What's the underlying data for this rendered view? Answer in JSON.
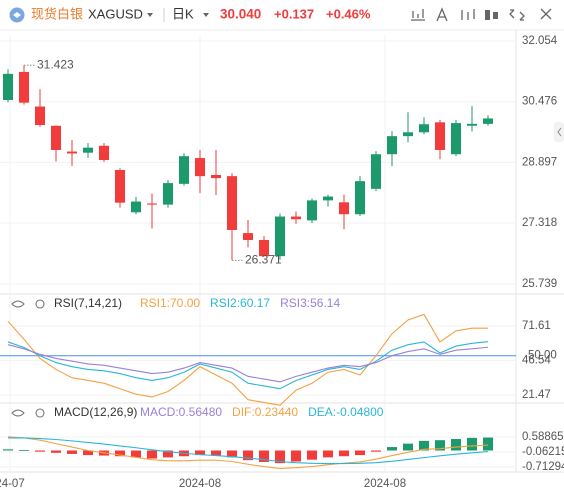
{
  "header": {
    "product": "现货白银",
    "symbol": "XAGUSD",
    "period": "日K",
    "price": "30.040",
    "change": "+0.137",
    "change_pct": "+0.46%"
  },
  "x_axis_labels": [
    "24-07",
    "2024-08",
    "2024-08"
  ],
  "chart_data": [
    {
      "type": "candlestick",
      "up_color": "#1c9a6c",
      "down_color": "#f23b3b",
      "open": [
        30.52,
        31.25,
        30.35,
        29.85,
        29.18,
        29.15,
        29.33,
        28.7,
        27.6,
        27.83,
        27.8,
        28.34,
        29.01,
        28.57,
        28.54,
        27.06,
        26.88,
        26.46,
        27.49,
        27.39,
        27.91,
        27.86,
        27.55,
        28.21,
        29.11,
        29.58,
        29.68,
        29.94,
        29.11,
        29.85,
        29.9
      ],
      "high": [
        31.32,
        31.423,
        30.8,
        29.85,
        29.48,
        29.4,
        29.4,
        28.75,
        28.0,
        28.09,
        28.44,
        29.14,
        29.22,
        29.22,
        28.62,
        27.4,
        26.98,
        27.57,
        27.62,
        27.96,
        28.06,
        28.06,
        28.54,
        29.19,
        29.71,
        30.2,
        30.07,
        30.0,
        30.0,
        30.36,
        30.12
      ],
      "low": [
        30.46,
        30.4,
        29.82,
        28.92,
        28.8,
        29.02,
        28.91,
        27.72,
        27.55,
        27.18,
        27.72,
        28.29,
        28.1,
        28.05,
        26.35,
        26.69,
        26.45,
        26.371,
        27.3,
        27.32,
        27.75,
        27.16,
        27.5,
        28.15,
        28.8,
        29.42,
        29.63,
        28.98,
        29.06,
        29.7,
        29.85
      ],
      "close": [
        31.2,
        30.45,
        29.87,
        29.22,
        29.13,
        29.28,
        28.96,
        27.85,
        27.88,
        27.8,
        28.36,
        29.06,
        28.54,
        28.49,
        27.14,
        26.88,
        26.46,
        27.49,
        27.42,
        27.91,
        28.01,
        27.55,
        28.41,
        29.11,
        29.58,
        29.68,
        29.89,
        29.22,
        29.92,
        29.9,
        30.04
      ],
      "high_label": "31.423",
      "low_label": "26.371",
      "ylim": [
        25.58,
        32.21
      ],
      "yticks": [
        32.054,
        30.476,
        28.897,
        27.318,
        25.739
      ]
    },
    {
      "type": "line",
      "title": "RSI(7,14,21)",
      "series": [
        {
          "name": "RSI1:70.00",
          "color": "#f4a142",
          "values": [
            75,
            62,
            48,
            40,
            34,
            32,
            30,
            26,
            22,
            20,
            24,
            32,
            42,
            36,
            30,
            18,
            16,
            14,
            25,
            30,
            38,
            40,
            36,
            50,
            66,
            76,
            80,
            60,
            68,
            70,
            70
          ]
        },
        {
          "name": "RSI2:60.17",
          "color": "#29b6d8",
          "values": [
            60,
            56,
            50,
            45,
            42,
            40,
            39,
            37,
            34,
            32,
            34,
            38,
            44,
            41,
            38,
            30,
            28,
            26,
            32,
            36,
            40,
            42,
            40,
            46,
            54,
            58,
            60,
            52,
            57,
            59,
            60.17
          ]
        },
        {
          "name": "RSI3:56.14",
          "color": "#9b80d6",
          "values": [
            58,
            55,
            51,
            48,
            46,
            44,
            43,
            41,
            39,
            37,
            38,
            41,
            45,
            43,
            41,
            35,
            33,
            31,
            35,
            38,
            41,
            43,
            42,
            45,
            50,
            53,
            55,
            51,
            54,
            55,
            56.14
          ]
        }
      ],
      "reference_line": {
        "value": 50,
        "label": "50.00",
        "color": "#4a8fe7"
      },
      "ylim": [
        17.8,
        90.5
      ],
      "yticks": [
        71.61,
        46.54,
        21.47
      ]
    },
    {
      "type": "macd",
      "title": "MACD(12,26,9)",
      "series": [
        {
          "name": "MACD:0.56480",
          "color": "#9b80d6",
          "up_color": "#1c9a6c",
          "down_color": "#f23b3b",
          "values": [
            0.05,
            0.02,
            -0.05,
            -0.1,
            -0.15,
            -0.2,
            -0.22,
            -0.25,
            -0.3,
            -0.35,
            -0.3,
            -0.25,
            -0.2,
            -0.22,
            -0.3,
            -0.42,
            -0.5,
            -0.55,
            -0.48,
            -0.4,
            -0.3,
            -0.25,
            -0.2,
            -0.05,
            0.15,
            0.3,
            0.42,
            0.45,
            0.5,
            0.55,
            0.5648
          ]
        },
        {
          "name": "DIF:0.23440",
          "color": "#f4a142",
          "values": [
            0.6,
            0.55,
            0.45,
            0.3,
            0.15,
            0.0,
            -0.1,
            -0.2,
            -0.3,
            -0.4,
            -0.45,
            -0.45,
            -0.42,
            -0.42,
            -0.48,
            -0.6,
            -0.7,
            -0.78,
            -0.75,
            -0.7,
            -0.62,
            -0.55,
            -0.5,
            -0.38,
            -0.22,
            -0.08,
            0.05,
            0.08,
            0.15,
            0.2,
            0.2344
          ]
        },
        {
          "name": "DEA:-0.04800",
          "color": "#29b6d8",
          "values": [
            0.55,
            0.55,
            0.52,
            0.48,
            0.42,
            0.35,
            0.28,
            0.2,
            0.12,
            0.03,
            -0.05,
            -0.12,
            -0.18,
            -0.22,
            -0.27,
            -0.33,
            -0.4,
            -0.48,
            -0.53,
            -0.56,
            -0.57,
            -0.57,
            -0.56,
            -0.53,
            -0.47,
            -0.39,
            -0.31,
            -0.23,
            -0.16,
            -0.1,
            -0.048
          ]
        }
      ],
      "ylim": [
        -0.85,
        1.33
      ],
      "yticks": [
        0.58865,
        -0.06215,
        -0.71294
      ]
    }
  ]
}
